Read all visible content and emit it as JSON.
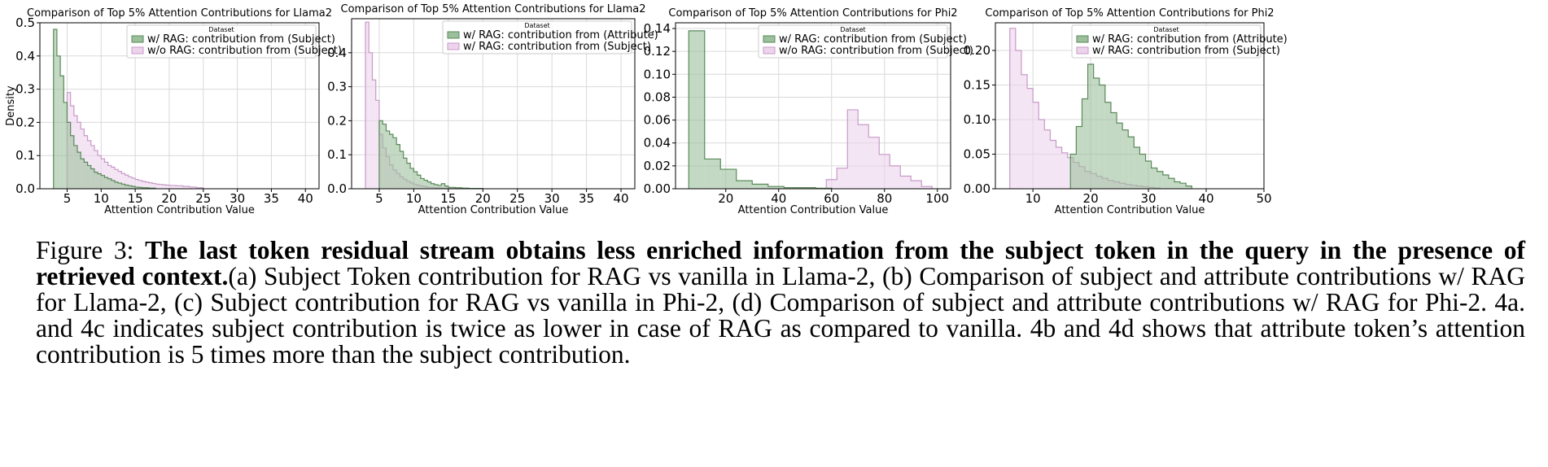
{
  "chart_data": [
    {
      "type": "histogram",
      "title": "Comparison of Top 5% Attention Contributions for Llama2",
      "xlabel": "Attention Contribution Value",
      "ylabel": "Density",
      "xlim": [
        1,
        42
      ],
      "ylim": [
        0,
        0.5
      ],
      "xticks": [
        5,
        10,
        15,
        20,
        25,
        30,
        35,
        40
      ],
      "yticks": [
        0.0,
        0.1,
        0.2,
        0.3,
        0.4,
        0.5
      ],
      "tick_format": 1,
      "grid": true,
      "legend": {
        "title": "Dataset",
        "position": "top-right"
      },
      "series": [
        {
          "name": "w/ RAG: contribution from (Subject)",
          "color": "#5a8a5a",
          "fill": "#9cbf9c",
          "edges": [
            3.0,
            3.5,
            4.0,
            4.5,
            5.0,
            5.5,
            6.0,
            6.5,
            7.0,
            7.5,
            8.0,
            8.5,
            9.0,
            9.5,
            10.0,
            10.5,
            11.0,
            11.5,
            12.0,
            12.5,
            13.0,
            13.5,
            14.0,
            14.5,
            15.0,
            15.5,
            16.0,
            17.0,
            18.0
          ],
          "values": [
            0.48,
            0.4,
            0.34,
            0.26,
            0.2,
            0.16,
            0.13,
            0.11,
            0.09,
            0.08,
            0.07,
            0.06,
            0.05,
            0.045,
            0.04,
            0.034,
            0.03,
            0.025,
            0.02,
            0.017,
            0.014,
            0.011,
            0.009,
            0.007,
            0.005,
            0.004,
            0.003,
            0.002
          ]
        },
        {
          "name": "w/o RAG: contribution from (Subject)",
          "color": "#c89ac8",
          "fill": "#ecd4ec",
          "edges": [
            5.0,
            5.5,
            6.0,
            6.5,
            7.0,
            7.5,
            8.0,
            8.5,
            9.0,
            9.5,
            10.0,
            10.5,
            11.0,
            11.5,
            12.0,
            12.5,
            13.0,
            13.5,
            14.0,
            14.5,
            15.0,
            15.5,
            16.0,
            16.5,
            17.0,
            17.5,
            18.0,
            18.5,
            19.0,
            19.5,
            20.0,
            21.0,
            22.0,
            23.0,
            24.0,
            25.0
          ],
          "values": [
            0.29,
            0.25,
            0.22,
            0.2,
            0.18,
            0.16,
            0.145,
            0.13,
            0.115,
            0.1,
            0.09,
            0.08,
            0.07,
            0.065,
            0.058,
            0.052,
            0.046,
            0.041,
            0.036,
            0.032,
            0.028,
            0.025,
            0.022,
            0.02,
            0.018,
            0.016,
            0.014,
            0.013,
            0.012,
            0.011,
            0.01,
            0.009,
            0.007,
            0.005,
            0.003
          ]
        }
      ]
    },
    {
      "type": "histogram",
      "title": "Comparison of Top 5% Attention Contributions for Llama2",
      "xlabel": "Attention Contribution Value",
      "ylabel": "",
      "xlim": [
        1,
        42
      ],
      "ylim": [
        0,
        0.5
      ],
      "xticks": [
        5,
        10,
        15,
        20,
        25,
        30,
        35,
        40
      ],
      "yticks": [
        0.0,
        0.1,
        0.2,
        0.3,
        0.4
      ],
      "tick_format": 1,
      "grid": true,
      "legend": {
        "title": "Dataset",
        "position": "top-right"
      },
      "series": [
        {
          "name": "w/ RAG: contribution from (Attribute)",
          "color": "#5a8a5a",
          "fill": "#9cbf9c",
          "edges": [
            5.0,
            5.5,
            6.0,
            6.5,
            7.0,
            7.5,
            8.0,
            8.5,
            9.0,
            9.5,
            10.0,
            10.5,
            11.0,
            11.5,
            12.0,
            12.5,
            13.0,
            13.5,
            14.0,
            14.5,
            15.0,
            16.0,
            17.0,
            18.0,
            20.0
          ],
          "values": [
            0.2,
            0.19,
            0.17,
            0.16,
            0.15,
            0.13,
            0.11,
            0.09,
            0.075,
            0.06,
            0.05,
            0.04,
            0.03,
            0.025,
            0.02,
            0.015,
            0.012,
            0.01,
            0.015,
            0.008,
            0.004,
            0.003,
            0.002,
            0.001
          ]
        },
        {
          "name": "w/ RAG: contribution from (Subject)",
          "color": "#c89ac8",
          "fill": "#ecd4ec",
          "edges": [
            3.0,
            3.5,
            4.0,
            4.5,
            5.0,
            5.5,
            6.0,
            6.5,
            7.0,
            7.5,
            8.0,
            8.5,
            9.0,
            9.5,
            10.0,
            10.5,
            11.0,
            11.5,
            12.0,
            13.0,
            14.0,
            15.0,
            16.0
          ],
          "values": [
            0.49,
            0.4,
            0.32,
            0.26,
            0.16,
            0.12,
            0.095,
            0.07,
            0.055,
            0.045,
            0.035,
            0.028,
            0.022,
            0.017,
            0.013,
            0.01,
            0.008,
            0.006,
            0.004,
            0.003,
            0.002,
            0.001
          ]
        }
      ]
    },
    {
      "type": "histogram",
      "title": "Comparison of Top 5% Attention Contributions for Phi2",
      "xlabel": "Attention Contribution Value",
      "ylabel": "",
      "xlim": [
        1,
        105
      ],
      "ylim": [
        0,
        0.145
      ],
      "xticks": [
        20,
        40,
        60,
        80,
        100
      ],
      "yticks": [
        0.0,
        0.02,
        0.04,
        0.06,
        0.08,
        0.1,
        0.12,
        0.14
      ],
      "tick_format": 2,
      "grid": true,
      "legend": {
        "title": "Dataset",
        "position": "top-right"
      },
      "series": [
        {
          "name": "w/ RAG: contribution from (Subject)",
          "color": "#5a8a5a",
          "fill": "#9cbf9c",
          "edges": [
            6,
            12,
            18,
            24,
            30,
            36,
            42,
            48,
            54,
            60
          ],
          "values": [
            0.138,
            0.026,
            0.017,
            0.007,
            0.004,
            0.002,
            0.001,
            0.001,
            0.0005
          ]
        },
        {
          "name": "w/o RAG: contribution from (Subject)",
          "color": "#c89ac8",
          "fill": "#ecd4ec",
          "edges": [
            58,
            62,
            66,
            70,
            74,
            78,
            82,
            86,
            90,
            94,
            98
          ],
          "values": [
            0.008,
            0.018,
            0.069,
            0.056,
            0.045,
            0.03,
            0.02,
            0.011,
            0.007,
            0.002
          ]
        }
      ]
    },
    {
      "type": "histogram",
      "title": "Comparison of Top 5% Attention Contributions for Phi2",
      "xlabel": "Attention Contribution Value",
      "ylabel": "",
      "xlim": [
        3.5,
        50
      ],
      "ylim": [
        0,
        0.24
      ],
      "xticks": [
        10,
        20,
        30,
        40,
        50
      ],
      "yticks": [
        0.0,
        0.05,
        0.1,
        0.15,
        0.2
      ],
      "tick_format": 2,
      "grid": true,
      "legend": {
        "title": "Dataset",
        "position": "top-right"
      },
      "series": [
        {
          "name": "w/ RAG: contribution from (Attribute)",
          "color": "#5a8a5a",
          "fill": "#9cbf9c",
          "edges": [
            16.5,
            17.5,
            18.5,
            19.5,
            20.5,
            21.5,
            22.5,
            23.5,
            24.5,
            25.5,
            26.5,
            27.5,
            28.5,
            29.5,
            30.5,
            31.5,
            32.5,
            33.5,
            34.5,
            35.5,
            36.5,
            37.5
          ],
          "values": [
            0.05,
            0.09,
            0.13,
            0.18,
            0.16,
            0.15,
            0.125,
            0.11,
            0.095,
            0.085,
            0.075,
            0.06,
            0.05,
            0.04,
            0.03,
            0.025,
            0.02,
            0.015,
            0.01,
            0.008,
            0.004
          ]
        },
        {
          "name": "w/ RAG: contribution from (Subject)",
          "color": "#c89ac8",
          "fill": "#ecd4ec",
          "edges": [
            6,
            7,
            8,
            9,
            10,
            11,
            12,
            13,
            14,
            15,
            16,
            17,
            18,
            19,
            20,
            21,
            22,
            23,
            24,
            25,
            26,
            27,
            28,
            29,
            30,
            31,
            32
          ],
          "values": [
            0.232,
            0.2,
            0.165,
            0.145,
            0.125,
            0.1,
            0.085,
            0.07,
            0.06,
            0.052,
            0.045,
            0.038,
            0.032,
            0.025,
            0.022,
            0.018,
            0.015,
            0.012,
            0.01,
            0.008,
            0.006,
            0.005,
            0.004,
            0.003,
            0.002,
            0.001
          ]
        }
      ]
    }
  ],
  "caption": {
    "label": "Figure 3: ",
    "bold": "The last token residual stream obtains less enriched information from the subject token in the query in the presence of retrieved context.",
    "rest": "(a) Subject Token contribution for RAG vs vanilla in Llama-2, (b) Comparison of subject and attribute contributions w/ RAG for Llama-2, (c) Subject contribution for RAG vs vanilla in Phi-2, (d) Comparison of subject and attribute contributions w/ RAG for Phi-2. 4a. and 4c indicates subject contribution is twice as lower in case of RAG as compared to vanilla. 4b and 4d shows that attribute token’s attention contribution is 5 times more than the subject contribution."
  }
}
